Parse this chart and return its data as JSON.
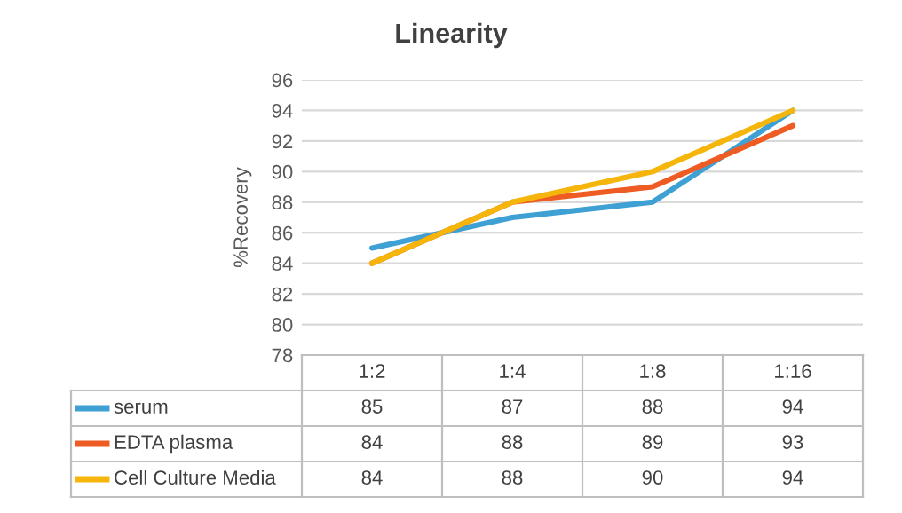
{
  "chart_data": {
    "type": "line",
    "title": "Linearity",
    "ylabel": "%Recovery",
    "categories": [
      "1:2",
      "1:4",
      "1:8",
      "1:16"
    ],
    "series": [
      {
        "name": "serum",
        "color": "#3fa0d4",
        "values": [
          85,
          87,
          88,
          94
        ]
      },
      {
        "name": "EDTA plasma",
        "color": "#ee5b23",
        "values": [
          84,
          88,
          89,
          93
        ]
      },
      {
        "name": "Cell Culture Media",
        "color": "#f5b50a",
        "values": [
          84,
          88,
          90,
          94
        ]
      }
    ],
    "ylim": [
      78,
      96
    ],
    "yticks": [
      78,
      80,
      82,
      84,
      86,
      88,
      90,
      92,
      94,
      96
    ],
    "grid": "y",
    "legend": "bottom",
    "data_labels": true
  }
}
